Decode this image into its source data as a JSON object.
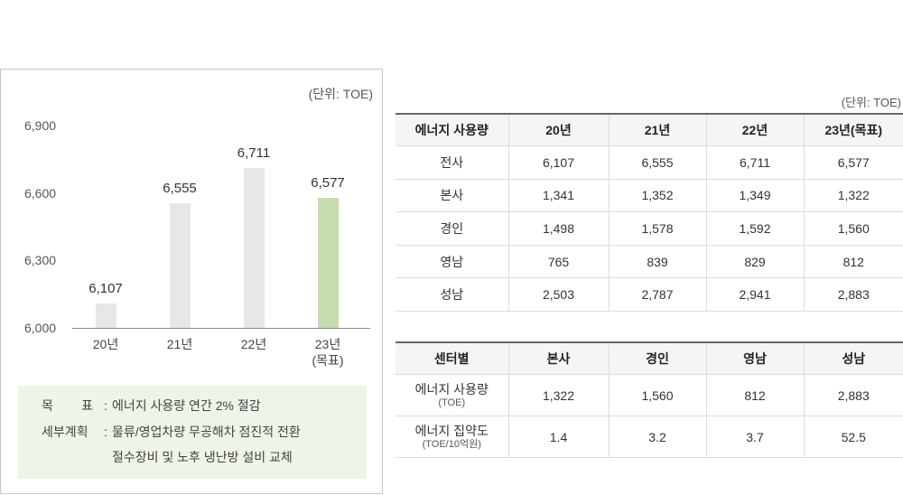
{
  "chart_data": [
    {
      "type": "bar",
      "unit": "(단위: TOE)",
      "categories": [
        "20년",
        "21년",
        "22년",
        "23년\n(목표)"
      ],
      "values": [
        6107,
        6555,
        6711,
        6577
      ],
      "data_labels": [
        "6,107",
        "6,555",
        "6,711",
        "6,577"
      ],
      "ylim": [
        6000,
        6900
      ],
      "yticks": [
        6000,
        6300,
        6600,
        6900
      ],
      "ytick_labels": [
        "6,000",
        "6,300",
        "6,600",
        "6,900"
      ],
      "bar_colors": [
        "#e6e7e9",
        "#e6e7e9",
        "#e6e7e9",
        "#c6dcb1"
      ],
      "grid": false
    },
    {
      "type": "table",
      "unit": "(단위: TOE)",
      "headers": [
        "에너지 사용량",
        "20년",
        "21년",
        "22년",
        "23년(목표)"
      ],
      "rows": [
        [
          "전사",
          "6,107",
          "6,555",
          "6,711",
          "6,577"
        ],
        [
          "본사",
          "1,341",
          "1,352",
          "1,349",
          "1,322"
        ],
        [
          "경인",
          "1,498",
          "1,578",
          "1,592",
          "1,560"
        ],
        [
          "영남",
          "765",
          "839",
          "829",
          "812"
        ],
        [
          "성남",
          "2,503",
          "2,787",
          "2,941",
          "2,883"
        ]
      ]
    },
    {
      "type": "table",
      "headers": [
        "센터별",
        "본사",
        "경인",
        "영남",
        "성남"
      ],
      "rows": [
        {
          "label": "에너지 사용량",
          "sub": "(TOE)",
          "values": [
            "1,322",
            "1,560",
            "812",
            "2,883"
          ]
        },
        {
          "label": "에너지 집약도",
          "sub": "(TOE/10억원)",
          "values": [
            "1.4",
            "3.2",
            "3.7",
            "52.5"
          ]
        }
      ]
    }
  ],
  "goal": {
    "background": "#eef4e7",
    "rows": [
      {
        "label": "목 표",
        "sep": ":",
        "lines": [
          "에너지 사용량 연간 2% 절감"
        ]
      },
      {
        "label": "세부계획",
        "sep": ":",
        "lines": [
          "물류/영업차량 무공해차 점진적 전환",
          "절수장비 및 노후 냉난방 설비 교체"
        ]
      }
    ]
  }
}
